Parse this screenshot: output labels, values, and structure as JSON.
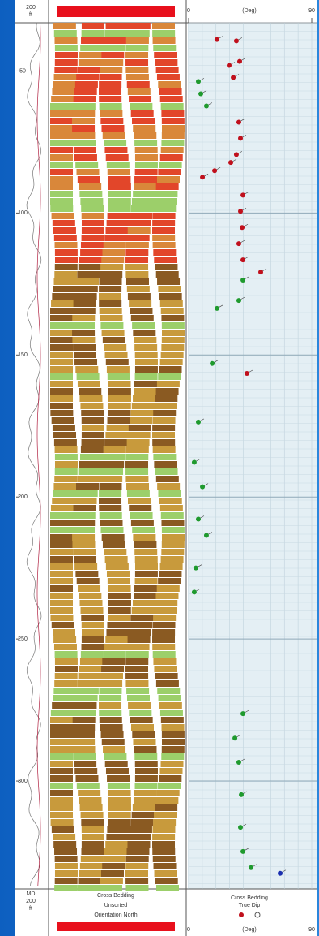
{
  "chart_data": {
    "type": "scatter",
    "header": {
      "scale": "200",
      "unit": "ft"
    },
    "x_label": "(Deg)",
    "xlim": [
      0,
      90
    ],
    "xticks": [
      0,
      90
    ],
    "ylim": [
      33,
      338
    ],
    "yticks": [
      50,
      100,
      150,
      200,
      250,
      300
    ],
    "grid": true,
    "series": [
      {
        "color": "#c0101c",
        "x": [
          20.7,
          34.9,
          29.6,
          37.3,
          32.6,
          36.7,
          37.9,
          34.9,
          30.8,
          19,
          10.1,
          39.7,
          37.9,
          39.1,
          36.7,
          39.7,
          52.7,
          42.6
        ],
        "values": [
          38.9,
          39.4,
          48,
          46.6,
          52.3,
          68,
          73.7,
          79.4,
          82.2,
          85.1,
          87.4,
          93.7,
          99.4,
          105.1,
          110.8,
          116.5,
          120.8,
          156.5
        ]
      },
      {
        "color": "#1f9a2e",
        "x": [
          7.1,
          8.9,
          13,
          39.7,
          36.7,
          20.7,
          17.2,
          7.1,
          4.1,
          10.1,
          7.1,
          13,
          5.3,
          4.1,
          39.7,
          33.8,
          36.7,
          38.5,
          37.9,
          39.7,
          45.6
        ],
        "values": [
          53.7,
          58,
          62.3,
          123.6,
          130.8,
          133.6,
          153,
          173.6,
          187.8,
          196.4,
          207.8,
          213.5,
          225,
          233.5,
          276.3,
          284.9,
          293.4,
          304.8,
          316.3,
          324.8,
          330.5
        ]
      },
      {
        "color": "#1a2fb0",
        "x": [
          66.9
        ],
        "values": [
          332.5
        ]
      }
    ],
    "footer": {
      "md": "MD",
      "scale": "200",
      "unit": "ft",
      "image_lines": [
        "Cross Bedding",
        "Unsorted",
        "Orientation North"
      ],
      "legend_lines": [
        "Cross Bedding",
        "True Dip"
      ]
    }
  }
}
